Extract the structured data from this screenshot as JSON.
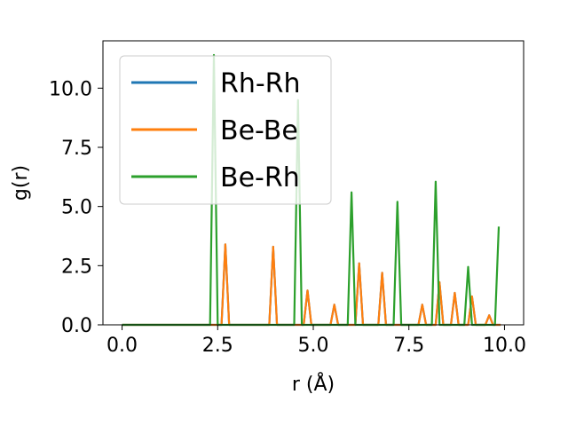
{
  "chart_data": {
    "type": "line",
    "title": "",
    "xlabel": "r (Å)",
    "ylabel": "g(r)",
    "xlim": [
      -0.5,
      10.5
    ],
    "ylim": [
      0,
      12
    ],
    "xticks": [
      0.0,
      2.5,
      5.0,
      7.5,
      10.0
    ],
    "xtick_labels": [
      "0.0",
      "2.5",
      "5.0",
      "7.5",
      "10.0"
    ],
    "yticks": [
      0.0,
      2.5,
      5.0,
      7.5,
      10.0
    ],
    "ytick_labels": [
      "0.0",
      "2.5",
      "5.0",
      "7.5",
      "10.0"
    ],
    "grid": false,
    "legend_position": "top-left",
    "series": [
      {
        "name": "Rh-Rh",
        "color": "#1f77b4",
        "x": [
          0.0,
          2.6,
          2.7,
          2.8,
          3.85,
          3.95,
          4.05,
          4.75,
          4.85,
          4.95,
          5.45,
          5.55,
          5.65,
          6.1,
          6.2,
          6.3,
          6.7,
          6.8,
          6.9,
          7.75,
          7.85,
          7.95,
          8.2,
          8.3,
          8.4,
          8.6,
          8.7,
          8.8,
          9.05,
          9.15,
          9.25,
          9.5,
          9.6,
          9.7,
          9.9
        ],
        "y": [
          0,
          0,
          3.4,
          0,
          0,
          3.3,
          0,
          0,
          1.45,
          0,
          0,
          0.85,
          0,
          0,
          2.6,
          0,
          0,
          2.2,
          0,
          0,
          0.85,
          0,
          0,
          1.8,
          0,
          0,
          1.35,
          0,
          0,
          1.2,
          0,
          0,
          0.4,
          0,
          0
        ]
      },
      {
        "name": "Be-Be",
        "color": "#ff7f0e",
        "x": [
          0.0,
          2.6,
          2.7,
          2.8,
          3.85,
          3.95,
          4.05,
          4.75,
          4.85,
          4.95,
          5.45,
          5.55,
          5.65,
          6.1,
          6.2,
          6.3,
          6.7,
          6.8,
          6.9,
          7.75,
          7.85,
          7.95,
          8.2,
          8.3,
          8.4,
          8.6,
          8.7,
          8.8,
          9.05,
          9.15,
          9.25,
          9.5,
          9.6,
          9.7,
          9.9
        ],
        "y": [
          0,
          0,
          3.4,
          0,
          0,
          3.3,
          0,
          0,
          1.45,
          0,
          0,
          0.85,
          0,
          0,
          2.6,
          0,
          0,
          2.2,
          0,
          0,
          0.85,
          0,
          0,
          1.8,
          0,
          0,
          1.35,
          0,
          0,
          1.2,
          0,
          0,
          0.4,
          0,
          0
        ]
      },
      {
        "name": "Be-Rh",
        "color": "#2ca02c",
        "x": [
          0.0,
          2.3,
          2.4,
          2.5,
          4.5,
          4.6,
          4.7,
          5.9,
          6.0,
          6.1,
          7.1,
          7.2,
          7.3,
          8.1,
          8.2,
          8.3,
          8.95,
          9.05,
          9.15,
          9.75,
          9.85
        ],
        "y": [
          0,
          0,
          11.4,
          0,
          0,
          9.5,
          0,
          0,
          5.6,
          0,
          0,
          5.2,
          0,
          0,
          6.05,
          0,
          0,
          2.45,
          0,
          0,
          4.15
        ]
      }
    ]
  }
}
